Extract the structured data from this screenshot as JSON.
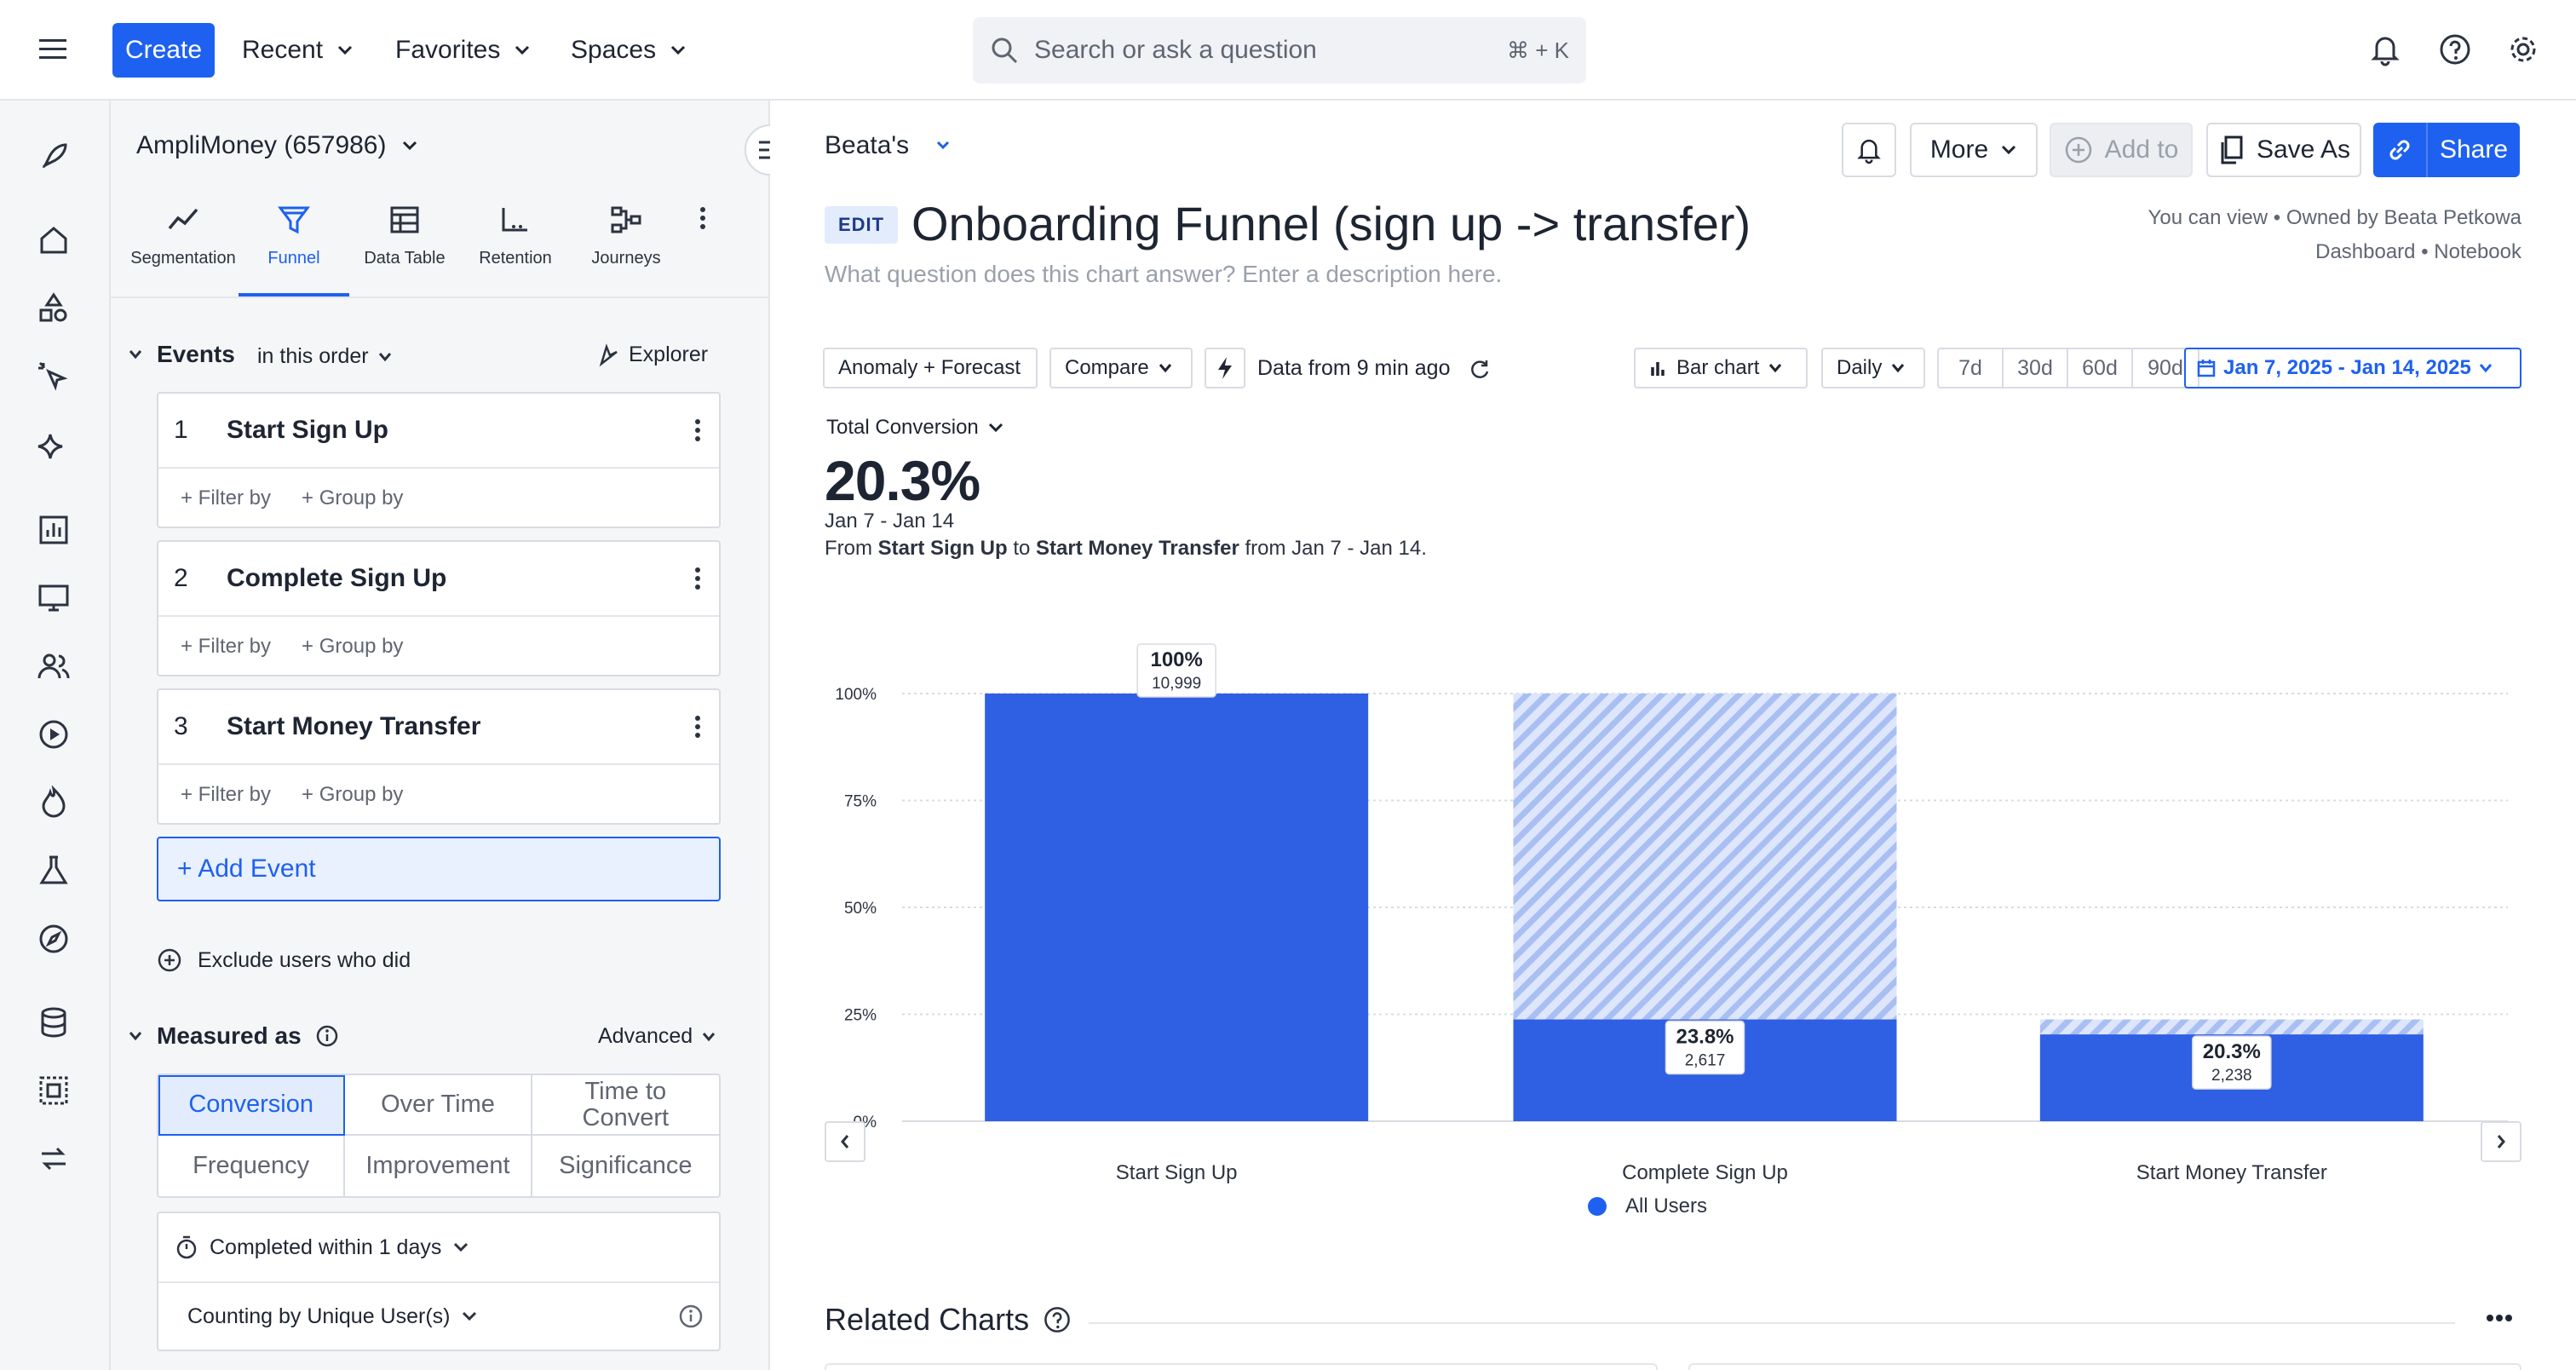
{
  "topbar": {
    "create_label": "Create",
    "nav": [
      "Recent",
      "Favorites",
      "Spaces"
    ],
    "search_placeholder": "Search or ask a question",
    "search_shortcut": "⌘ + K"
  },
  "panel": {
    "project": "AmpliMoney (657986)",
    "chart_tabs": [
      "Segmentation",
      "Funnel",
      "Data Table",
      "Retention",
      "Journeys"
    ],
    "active_tab": "Funnel",
    "events_heading": "Events",
    "order_label": "in this order",
    "explorer_label": "Explorer",
    "events": [
      {
        "num": "1",
        "name": "Start Sign Up"
      },
      {
        "num": "2",
        "name": "Complete Sign Up"
      },
      {
        "num": "3",
        "name": "Start Money Transfer"
      }
    ],
    "filter_label": "+ Filter by",
    "group_label": "+ Group by",
    "add_event_label": "+ Add Event",
    "exclude_label": "Exclude users who did",
    "measured_heading": "Measured as",
    "advanced_label": "Advanced",
    "measures": [
      "Conversion",
      "Over Time",
      "Time to Convert",
      "Frequency",
      "Improvement",
      "Significance"
    ],
    "active_measure": "Conversion",
    "completed_within": "Completed within 1 days",
    "counting_by": "Counting by Unique User(s)"
  },
  "main": {
    "breadcrumb": "Beata's",
    "more_label": "More",
    "add_to_label": "Add to",
    "save_as_label": "Save As",
    "share_label": "Share",
    "edit_badge": "EDIT",
    "title": "Onboarding Funnel (sign up -> transfer)",
    "description_placeholder": "What question does this chart answer? Enter a description here.",
    "owner_line1": "You can view • Owned by Beata Petkowa",
    "owner_line2": "Dashboard • Notebook",
    "toolbar": {
      "anomaly": "Anomaly + Forecast",
      "compare": "Compare",
      "data_freshness": "Data from 9 min ago",
      "chart_type": "Bar chart",
      "interval": "Daily",
      "ranges": [
        "7d",
        "30d",
        "60d",
        "90d"
      ],
      "date_range": "Jan 7, 2025 - Jan 14, 2025"
    },
    "metric_label": "Total Conversion",
    "metric_value": "20.3%",
    "metric_range": "Jan 7 - Jan 14",
    "from_prefix": "From",
    "from_event": "Start Sign Up",
    "to_word": "to",
    "to_event": "Start Money Transfer",
    "from_suffix": "from Jan 7 - Jan 14.",
    "legend_label": "All Users",
    "related_heading": "Related Charts"
  },
  "colors": {
    "accent": "#1e61f0",
    "bar": "#2f5fe3",
    "bar_dropoff": "#b9c9f6"
  },
  "chart_data": {
    "type": "bar",
    "categories": [
      "Start Sign Up",
      "Complete Sign Up",
      "Start Money Transfer"
    ],
    "series": [
      {
        "name": "All Users",
        "values": [
          100,
          23.8,
          20.3
        ],
        "counts": [
          "10,999",
          "2,617",
          "2,238"
        ],
        "labels": [
          "100%",
          "23.8%",
          "20.3%"
        ]
      }
    ],
    "dropoff_top": [
      100,
      100,
      23.8
    ],
    "yticks": [
      "0%",
      "25%",
      "50%",
      "75%",
      "100%"
    ],
    "ylim": [
      0,
      100
    ],
    "grid": true,
    "legend": "bottom-center"
  }
}
